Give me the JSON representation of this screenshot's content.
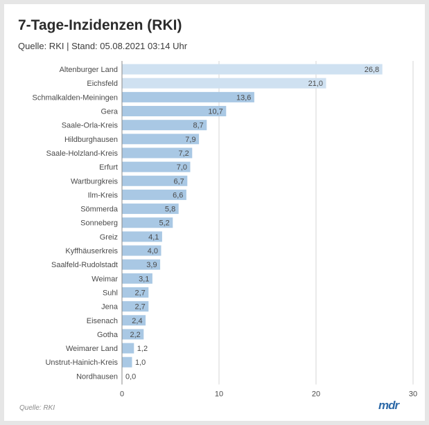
{
  "header": {
    "title": "7-Tage-Inzidenzen (RKI)",
    "subtitle": "Quelle: RKI | Stand: 05.08.2021 03:14 Uhr"
  },
  "footer": {
    "source": "Quelle: RKI",
    "logo": "mdr"
  },
  "colors": {
    "bar": "#a9c8e4",
    "bar_highlight": "#cfe1f1",
    "grid": "#d6d6d6",
    "axis": "#888888",
    "text": "#4a4a4a",
    "logo": "#2e6aa8"
  },
  "chart_data": {
    "type": "bar",
    "orientation": "horizontal",
    "categories": [
      "Altenburger Land",
      "Eichsfeld",
      "Schmalkalden-Meiningen",
      "Gera",
      "Saale-Orla-Kreis",
      "Hildburghausen",
      "Saale-Holzland-Kreis",
      "Erfurt",
      "Wartburgkreis",
      "Ilm-Kreis",
      "Sömmerda",
      "Sonneberg",
      "Greiz",
      "Kyffhäuserkreis",
      "Saalfeld-Rudolstadt",
      "Weimar",
      "Suhl",
      "Jena",
      "Eisenach",
      "Gotha",
      "Weimarer Land",
      "Unstrut-Hainich-Kreis",
      "Nordhausen"
    ],
    "values": [
      26.8,
      21.0,
      13.6,
      10.7,
      8.7,
      7.9,
      7.2,
      7.0,
      6.7,
      6.6,
      5.8,
      5.2,
      4.1,
      4.0,
      3.9,
      3.1,
      2.7,
      2.7,
      2.4,
      2.2,
      1.2,
      1.0,
      0.0
    ],
    "value_labels": [
      "26,8",
      "21,0",
      "13,6",
      "10,7",
      "8,7",
      "7,9",
      "7,2",
      "7,0",
      "6,7",
      "6,6",
      "5,8",
      "5,2",
      "4,1",
      "4,0",
      "3,9",
      "3,1",
      "2,7",
      "2,7",
      "2,4",
      "2,2",
      "1,2",
      "1,0",
      "0,0"
    ],
    "highlighted": [
      0,
      1
    ],
    "xlim": [
      0,
      30
    ],
    "xticks": [
      0,
      10,
      20,
      30
    ],
    "xtick_labels": [
      "0",
      "10",
      "20",
      "30"
    ],
    "grid": true,
    "legend": "none"
  }
}
